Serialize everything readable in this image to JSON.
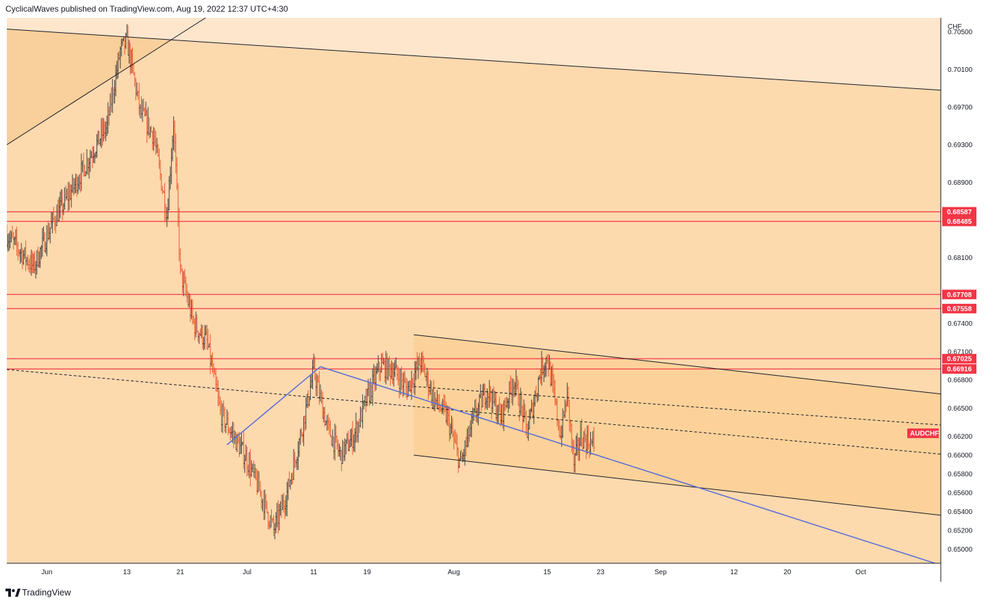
{
  "header": {
    "published_text": "CyclicalWaves published on TradingView.com, Aug 19, 2022 12:37 UTC+4:30"
  },
  "footer": {
    "brand": "TradingView"
  },
  "chart_data": {
    "type": "candlestick-bar",
    "symbol": "AUDCHF",
    "currency": "CHF",
    "last_price": 0.6605,
    "price_axis": {
      "range": [
        0.6485,
        0.7065
      ],
      "ticks": [
        "0.70500",
        "0.70100",
        "0.69700",
        "0.69300",
        "0.68900",
        "0.68100",
        "0.67400",
        "0.67100",
        "0.66800",
        "0.66500",
        "0.66200",
        "0.66000",
        "0.65800",
        "0.65600",
        "0.65400",
        "0.65200",
        "0.65000"
      ]
    },
    "time_axis": {
      "range": [
        "2022-05-26",
        "2022-10-13"
      ],
      "ticks": [
        {
          "date": "2022-06-01",
          "label": "Jun"
        },
        {
          "date": "2022-06-13",
          "label": "13"
        },
        {
          "date": "2022-06-21",
          "label": "21"
        },
        {
          "date": "2022-07-01",
          "label": "Jul"
        },
        {
          "date": "2022-07-11",
          "label": "11"
        },
        {
          "date": "2022-07-19",
          "label": "19"
        },
        {
          "date": "2022-08-01",
          "label": "Aug"
        },
        {
          "date": "2022-08-15",
          "label": "15"
        },
        {
          "date": "2022-08-23",
          "label": "23"
        },
        {
          "date": "2022-09-01",
          "label": "Sep"
        },
        {
          "date": "2022-09-12",
          "label": "12"
        },
        {
          "date": "2022-09-20",
          "label": "20"
        },
        {
          "date": "2022-10-01",
          "label": "Oct"
        }
      ]
    },
    "horizontal_levels": [
      {
        "price": 0.68587,
        "label": "0.68587"
      },
      {
        "price": 0.68485,
        "label": "0.68485"
      },
      {
        "price": 0.67708,
        "label": "0.67708"
      },
      {
        "price": 0.67558,
        "label": "0.67558"
      },
      {
        "price": 0.67025,
        "label": "0.67025"
      },
      {
        "price": 0.66916,
        "label": "0.66916"
      }
    ],
    "price_path": [
      [
        "2022-05-26",
        0.6834
      ],
      [
        "2022-05-30",
        0.68
      ],
      [
        "2022-06-02",
        0.685
      ],
      [
        "2022-06-05",
        0.6885
      ],
      [
        "2022-06-08",
        0.6925
      ],
      [
        "2022-06-10",
        0.695
      ],
      [
        "2022-06-12",
        0.703
      ],
      [
        "2022-06-13",
        0.704
      ],
      [
        "2022-06-15",
        0.6965
      ],
      [
        "2022-06-17",
        0.694
      ],
      [
        "2022-06-19",
        0.6855
      ],
      [
        "2022-06-20",
        0.6955
      ],
      [
        "2022-06-21",
        0.6795
      ],
      [
        "2022-06-23",
        0.674
      ],
      [
        "2022-06-25",
        0.672
      ],
      [
        "2022-06-27",
        0.6645
      ],
      [
        "2022-06-29",
        0.662
      ],
      [
        "2022-07-01",
        0.6595
      ],
      [
        "2022-07-03",
        0.656
      ],
      [
        "2022-07-05",
        0.652
      ],
      [
        "2022-07-07",
        0.656
      ],
      [
        "2022-07-09",
        0.662
      ],
      [
        "2022-07-11",
        0.669
      ],
      [
        "2022-07-13",
        0.663
      ],
      [
        "2022-07-15",
        0.66
      ],
      [
        "2022-07-17",
        0.662
      ],
      [
        "2022-07-19",
        0.666
      ],
      [
        "2022-07-21",
        0.6695
      ],
      [
        "2022-07-23",
        0.669
      ],
      [
        "2022-07-25",
        0.667
      ],
      [
        "2022-07-27",
        0.67
      ],
      [
        "2022-07-29",
        0.666
      ],
      [
        "2022-07-31",
        0.664
      ],
      [
        "2022-08-02",
        0.659
      ],
      [
        "2022-08-04",
        0.664
      ],
      [
        "2022-08-06",
        0.667
      ],
      [
        "2022-08-08",
        0.664
      ],
      [
        "2022-08-10",
        0.668
      ],
      [
        "2022-08-12",
        0.6625
      ],
      [
        "2022-08-14",
        0.669
      ],
      [
        "2022-08-15",
        0.6705
      ],
      [
        "2022-08-17",
        0.662
      ],
      [
        "2022-08-18",
        0.6665
      ],
      [
        "2022-08-19",
        0.659
      ],
      [
        "2022-08-20",
        0.662
      ],
      [
        "2022-08-22",
        0.661
      ]
    ],
    "trendlines": [
      {
        "name": "upper-resistance",
        "from": [
          "2022-05-26",
          0.7053
        ],
        "to": [
          "2022-10-13",
          0.6988
        ],
        "color": "#131722",
        "style": "solid"
      },
      {
        "name": "wedge-support",
        "from": [
          "2022-05-26",
          0.693
        ],
        "to": [
          "2022-06-27",
          0.7075
        ],
        "color": "#131722",
        "style": "solid"
      },
      {
        "name": "mid-dashed",
        "from": [
          "2022-05-26",
          0.6691
        ],
        "to": [
          "2022-10-13",
          0.6601
        ],
        "color": "#131722",
        "style": "dashed"
      },
      {
        "name": "mid-dashed-2",
        "from": [
          "2022-07-26",
          0.6673
        ],
        "to": [
          "2022-10-13",
          0.6632
        ],
        "color": "#131722",
        "style": "dashed"
      },
      {
        "name": "channel-top",
        "from": [
          "2022-07-26",
          0.6728
        ],
        "to": [
          "2022-10-13",
          0.6665
        ],
        "color": "#131722",
        "style": "solid"
      },
      {
        "name": "channel-bottom",
        "from": [
          "2022-07-26",
          0.66
        ],
        "to": [
          "2022-10-13",
          0.6536
        ],
        "color": "#131722",
        "style": "solid"
      },
      {
        "name": "blue-rise",
        "from": [
          "2022-06-28",
          0.6611
        ],
        "to": [
          "2022-07-12",
          0.6694
        ],
        "color": "#5b6fd6",
        "style": "solid"
      },
      {
        "name": "blue-fall",
        "from": [
          "2022-07-12",
          0.6694
        ],
        "to": [
          "2022-10-13",
          0.6483
        ],
        "color": "#5b6fd6",
        "style": "solid"
      }
    ],
    "colors": {
      "background": "#fdd9ae",
      "upper_zone": "#fde6cc",
      "channel_fill": "#fcd29a",
      "wedge_fill": "#f9cf9b",
      "bar_up": "#3f3f3f",
      "bar_down": "#e8572f",
      "level_line": "#f23645",
      "label_bg": "#f23645"
    },
    "legend": "none",
    "grid": false
  }
}
